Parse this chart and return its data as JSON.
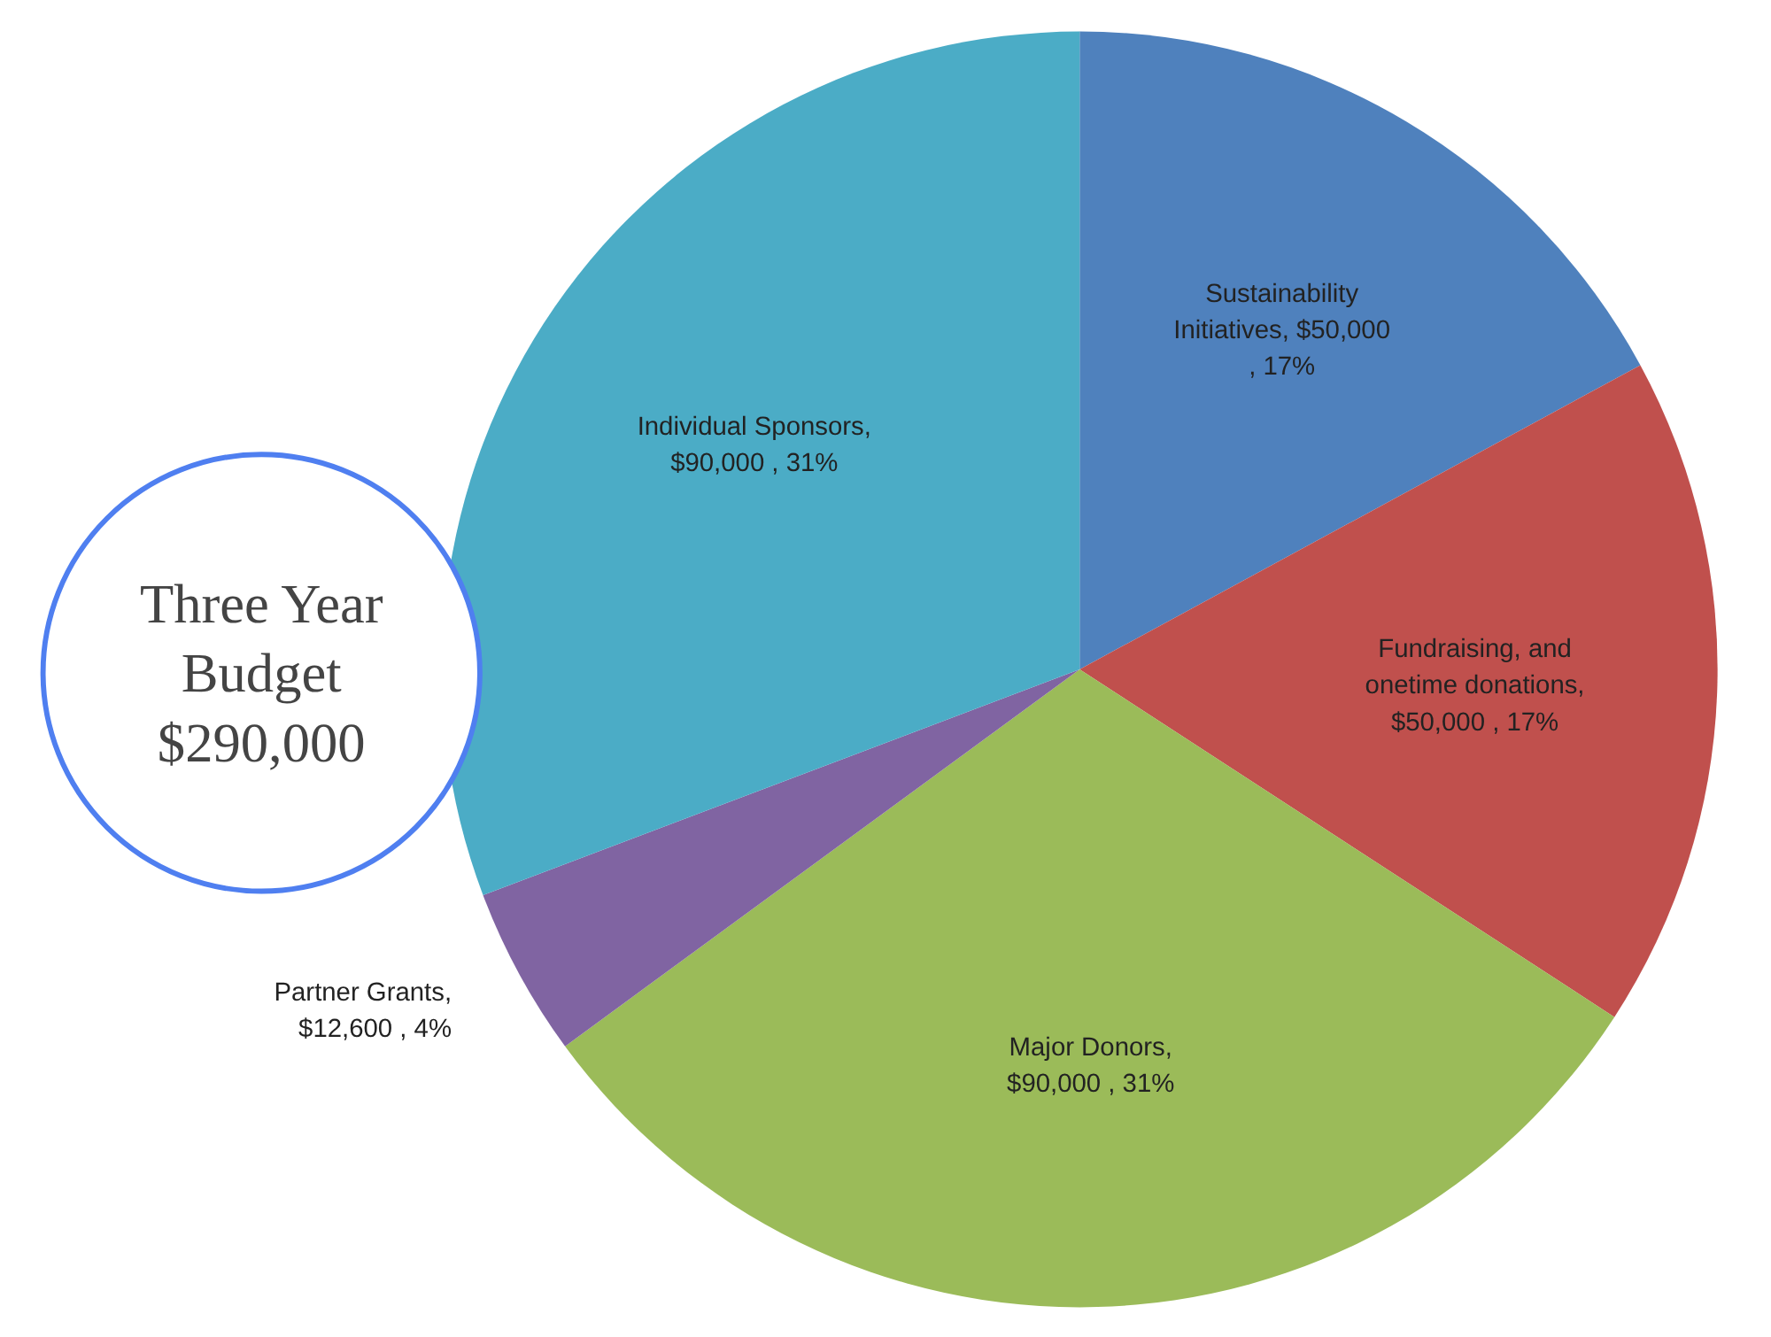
{
  "chart_data": {
    "type": "pie",
    "categories": [
      "Sustainability Initiatives, $50,000 , 17%",
      "Fundraising, and onetime donations, $50,000 , 17%",
      "Major Donors, $90,000 , 31%",
      "Partner Grants, $12,600 , 4%",
      "Individual Sponsors, $90,000 , 31%"
    ],
    "values": [
      50000,
      50000,
      90000,
      12600,
      90000
    ],
    "colors": [
      "#4f81bd",
      "#c0504d",
      "#9bbb59",
      "#8064a2",
      "#4bacc6"
    ],
    "annotations": [
      "Three Year Budget $290,000"
    ]
  }
}
